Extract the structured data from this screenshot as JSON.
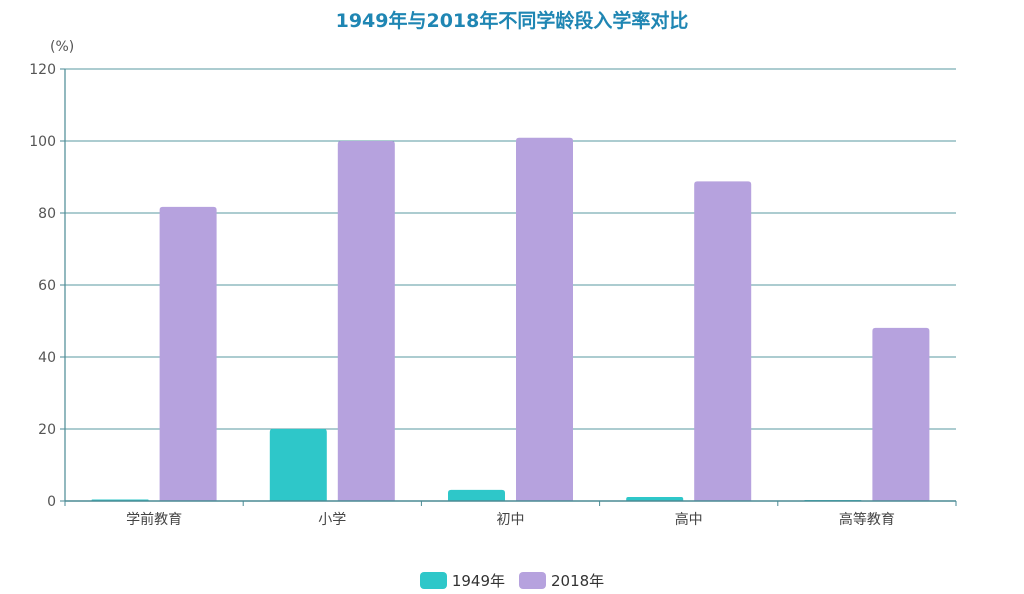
{
  "chart_data": {
    "type": "bar",
    "title": "1949年与2018年不同学龄段入学率对比",
    "ylabel": "(%)",
    "xlabel": "",
    "ylim": [
      0,
      120
    ],
    "yticks": [
      0,
      20,
      40,
      60,
      80,
      100,
      120
    ],
    "categories": [
      "学前教育",
      "小学",
      "初中",
      "高中",
      "高等教育"
    ],
    "series": [
      {
        "name": "1949年",
        "color": "#2ec7c9",
        "values": [
          0.4,
          20,
          3.1,
          1.1,
          0.26
        ]
      },
      {
        "name": "2018年",
        "color": "#b6a2de",
        "values": [
          81.7,
          100,
          100.9,
          88.8,
          48.1
        ]
      }
    ],
    "grid": true,
    "legend": "bottom-center"
  }
}
